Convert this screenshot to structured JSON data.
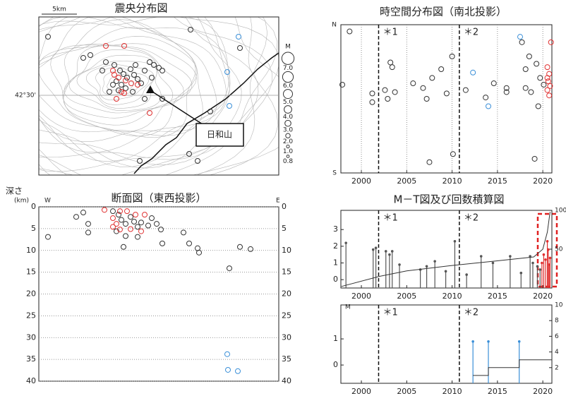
{
  "chart_data": [
    {
      "type": "map",
      "title": "震央分布図",
      "xlim": [
        0,
        34
      ],
      "ylim": [
        0,
        22.4
      ],
      "yticks": [
        {
          "value": 11.3,
          "label": "42°30'"
        }
      ],
      "scale_bar": {
        "label": "5km",
        "length": 5
      },
      "volcano": {
        "label": "日和山",
        "x": 15.8,
        "y": 12.0
      },
      "legend": {
        "title": "M",
        "sizes": [
          {
            "value": 7,
            "label": "7.0"
          },
          {
            "value": 6,
            "label": "6.0"
          },
          {
            "value": 5,
            "label": "5.0"
          },
          {
            "value": 4,
            "label": "4.0"
          },
          {
            "value": 3,
            "label": "3.0"
          },
          {
            "value": 2,
            "label": "2.0"
          },
          {
            "value": 1,
            "label": "1.0"
          },
          0.8
        ]
      },
      "series": [
        {
          "color": "#333333",
          "x": [
            1.3,
            6.3,
            7.3,
            9.5,
            10.7,
            11.5,
            12.0,
            12.5,
            11.0,
            11.7,
            13.0,
            13.5,
            14.0,
            14.5,
            12.3,
            11.3,
            10.5,
            15.7,
            16.3,
            17.0,
            17.5,
            15.0,
            13.3,
            21.5,
            28.5,
            27.5,
            24.3,
            21.3,
            22.5,
            14.3,
            17.5,
            15.0,
            9.0,
            10.0,
            13.7,
            16.0
          ],
          "y": [
            19.6,
            16.6,
            17.0,
            16.0,
            15.6,
            14.8,
            14.3,
            13.8,
            13.3,
            12.8,
            15.0,
            14.2,
            13.6,
            13.0,
            12.3,
            12.0,
            12.8,
            16.0,
            15.6,
            15.2,
            14.8,
            14.8,
            11.8,
            20.6,
            18.0,
            6.3,
            9.0,
            3.0,
            2.0,
            2.0,
            10.8,
            10.8,
            14.8,
            11.8,
            15.6,
            13.8
          ]
        },
        {
          "color": "#e03030",
          "x": [
            9.5,
            12.1,
            10.5,
            11.3,
            12.3,
            11.7,
            14.0,
            13.1,
            12.1,
            11.0,
            15.7,
            10.7
          ],
          "y": [
            18.3,
            18.3,
            14.8,
            13.8,
            13.4,
            11.8,
            12.8,
            13.0,
            11.6,
            10.8,
            8.8,
            14.2
          ]
        },
        {
          "color": "#3a8fd8",
          "x": [
            28.3,
            26.7,
            27.0
          ],
          "y": [
            19.6,
            14.6,
            9.8
          ]
        }
      ]
    },
    {
      "type": "scatter",
      "title": "時空間分布図（南北投影）",
      "xlim": [
        1997.74,
        2021
      ],
      "ylim": [
        0,
        22
      ],
      "xticks": [
        2000,
        2005,
        2010,
        2015,
        2020
      ],
      "grid": "x",
      "north_label": "N",
      "south_label": "S",
      "annotations": [
        {
          "label": "＊1",
          "x": 2001.9
        },
        {
          "label": "＊2",
          "x": 2010.8
        }
      ],
      "series": [
        {
          "color": "#333333",
          "x": [
            1998.7,
            1997.9,
            2001.2,
            2001.2,
            2002.6,
            2002.9,
            2003.2,
            2003.4,
            2003.7,
            2005.7,
            2006.8,
            2007.2,
            2007.8,
            2008.8,
            2009.4,
            2010.0,
            2010.1,
            2011.5,
            2013.7,
            2014.6,
            2016.0,
            2016.0,
            2017.7,
            2018.1,
            2018.5,
            2018.1,
            2018.7,
            2019.3,
            2019.7,
            2019.5,
            2020.1,
            2019.1,
            2007.5
          ],
          "y": [
            21.0,
            13.1,
            11.8,
            10.5,
            12.3,
            11.0,
            16.4,
            15.7,
            12.0,
            13.3,
            12.6,
            11.0,
            14.1,
            15.4,
            11.8,
            17.3,
            2.8,
            12.3,
            11.2,
            13.3,
            12.6,
            12.0,
            19.4,
            15.4,
            17.3,
            12.6,
            12.0,
            16.2,
            14.1,
            9.9,
            13.1,
            2.1,
            1.6
          ]
        },
        {
          "color": "#e03030",
          "x": [
            2020.5,
            2020.7,
            2020.6,
            2020.8,
            2020.5,
            2020.9,
            2020.5,
            2020.7
          ],
          "y": [
            15.7,
            14.7,
            13.6,
            12.9,
            12.3,
            19.4,
            14.1,
            11.5
          ]
        },
        {
          "color": "#3a8fd8",
          "x": [
            2017.5,
            2012.3,
            2014.0
          ],
          "y": [
            20.2,
            14.9,
            9.9
          ]
        }
      ]
    },
    {
      "type": "scatter",
      "title": "断面図（東西投影）",
      "xlim": [
        0,
        34
      ],
      "ylim": [
        0,
        40
      ],
      "invert_y": true,
      "yticks": [
        0,
        5,
        10,
        15,
        20,
        25,
        30,
        35,
        40
      ],
      "ytick_sides": "both",
      "grid": "y",
      "ylabel": "深さ",
      "ylabel_unit": "(km)",
      "west_label": "W",
      "east_label": "E",
      "series": [
        {
          "color": "#333333",
          "x": [
            1.3,
            5.3,
            6.3,
            7.0,
            7.0,
            10.5,
            11.3,
            11.7,
            12.3,
            13.0,
            13.5,
            14.0,
            14.5,
            15.5,
            16.0,
            16.7,
            17.3,
            12.3,
            12.0,
            17.5,
            20.5,
            21.3,
            22.5,
            22.7,
            28.5,
            30.0,
            27.0,
            14.0,
            11.0
          ],
          "y": [
            6.9,
            2.3,
            1.3,
            3.9,
            5.9,
            1.0,
            1.8,
            3.0,
            3.9,
            2.3,
            3.4,
            4.6,
            3.6,
            4.3,
            2.6,
            3.9,
            5.2,
            6.7,
            9.2,
            8.4,
            5.9,
            8.4,
            9.5,
            10.5,
            9.2,
            9.7,
            14.1,
            6.9,
            5.6
          ]
        },
        {
          "color": "#e03030",
          "x": [
            9.3,
            10.5,
            11.0,
            11.5,
            12.5,
            13.0,
            13.7,
            14.5,
            15.0,
            11.5,
            10.5
          ],
          "y": [
            0.7,
            2.6,
            3.9,
            5.2,
            1.0,
            5.1,
            1.8,
            5.6,
            1.8,
            1.0,
            4.6
          ]
        },
        {
          "color": "#3a8fd8",
          "x": [
            26.7,
            26.8,
            28.2
          ],
          "y": [
            33.8,
            37.4,
            37.7
          ]
        }
      ]
    },
    {
      "type": "stem",
      "title": "M－T図及び回数積算図",
      "xlim": [
        1997.74,
        2021
      ],
      "ylim": [
        -0.5,
        4.15
      ],
      "yticks": [
        0,
        1,
        2,
        3
      ],
      "y2lim": [
        0,
        100
      ],
      "y2ticks": [
        50,
        100
      ],
      "xticks": [
        2000,
        2005,
        2010,
        2015,
        2020
      ],
      "annotations": [
        {
          "label": "＊1",
          "x": 2001.9
        },
        {
          "label": "＊2",
          "x": 2010.8
        }
      ],
      "series": [
        {
          "color": "#555555",
          "x": [
            1998.3,
            2001.3,
            2001.6,
            2002.7,
            2003.1,
            2003.4,
            2004.2,
            2006.5,
            2007.2,
            2008.1,
            2009.3,
            2010.3,
            2011.6,
            2013.2,
            2014.5,
            2016.4,
            2017.6,
            2018.6,
            2018.9,
            2019.4,
            2019.7
          ],
          "values": [
            2.2,
            1.8,
            1.9,
            1.7,
            1.5,
            1.7,
            0.9,
            0.6,
            0.8,
            1.1,
            0.5,
            2.3,
            0.3,
            1.4,
            1.0,
            1.4,
            0.4,
            1.4,
            1.0,
            0.8,
            0.6
          ]
        },
        {
          "color": "#e03030",
          "x": [
            2019.9,
            2020.1,
            2020.3,
            2020.5,
            2020.6,
            2020.7,
            2020.8
          ],
          "values": [
            1.0,
            1.5,
            1.2,
            2.3,
            1.8,
            0.9,
            1.3
          ]
        },
        {
          "axis": "y2",
          "kind": "line",
          "color": "#333333",
          "x": [
            1997.8,
            2002,
            2005,
            2010,
            2015,
            2019,
            2020,
            2020.5,
            2020.8
          ],
          "values": [
            2,
            15,
            22,
            29,
            35,
            40,
            50,
            72,
            98
          ]
        }
      ]
    },
    {
      "type": "stem",
      "ylabel": "M",
      "xlim": [
        1997.74,
        2021
      ],
      "ylim": [
        -0.7,
        2.3
      ],
      "yticks": [
        0,
        1
      ],
      "y2lim": [
        0,
        10
      ],
      "y2ticks": [
        2,
        4,
        6,
        8,
        10
      ],
      "xticks": [
        2000,
        2005,
        2010,
        2015,
        2020
      ],
      "annotations": [
        {
          "label": "＊1",
          "x": 2001.9
        },
        {
          "label": "＊2",
          "x": 2010.8
        }
      ],
      "series": [
        {
          "color": "#3a8fd8",
          "x": [
            2012.3,
            2014.0,
            2017.4
          ],
          "values": [
            0.9,
            0.9,
            0.9
          ]
        },
        {
          "axis": "y2",
          "kind": "line",
          "step": true,
          "color": "#333333",
          "x": [
            2012.3,
            2014.0,
            2017.4
          ],
          "values": [
            1,
            2,
            3
          ]
        }
      ]
    }
  ]
}
